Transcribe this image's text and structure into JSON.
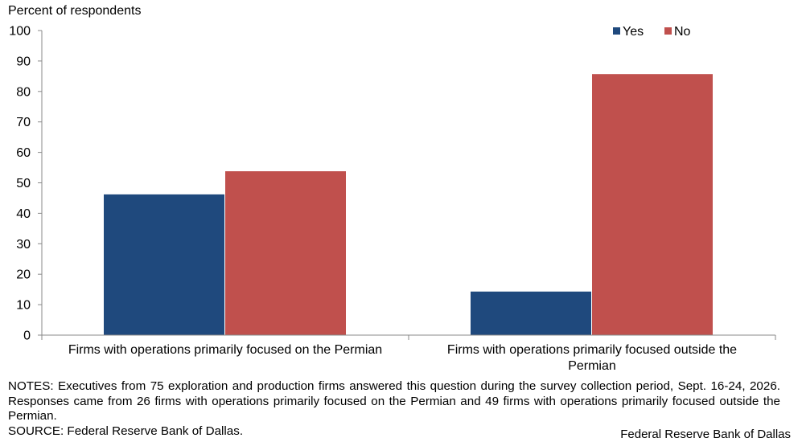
{
  "chart_data": {
    "type": "bar",
    "ylabel": "Percent of respondents",
    "ylim": [
      0,
      100
    ],
    "yticks": [
      0,
      10,
      20,
      30,
      40,
      50,
      60,
      70,
      80,
      90,
      100
    ],
    "categories": [
      [
        "Firms with operations primarily focused on the Permian"
      ],
      [
        "Firms with operations primarily focused outside the",
        "Permian"
      ]
    ],
    "series": [
      {
        "name": "Yes",
        "color": "#1F497D",
        "values": [
          46.2,
          14.3
        ]
      },
      {
        "name": "No",
        "color": "#C0504D",
        "values": [
          53.8,
          85.7
        ]
      }
    ],
    "legend_position": "top-right",
    "grid": false
  },
  "notes": {
    "text": "NOTES: Executives from 75 exploration and production firms answered this question during the survey collection period, Sept. 16-24, 2026. Responses came from 26 firms with operations primarily focused on the Permian and 49 firms with operations primarily focused outside the Permian.",
    "source": "SOURCE: Federal Reserve Bank of Dallas."
  },
  "credit": "Federal Reserve Bank of Dallas"
}
